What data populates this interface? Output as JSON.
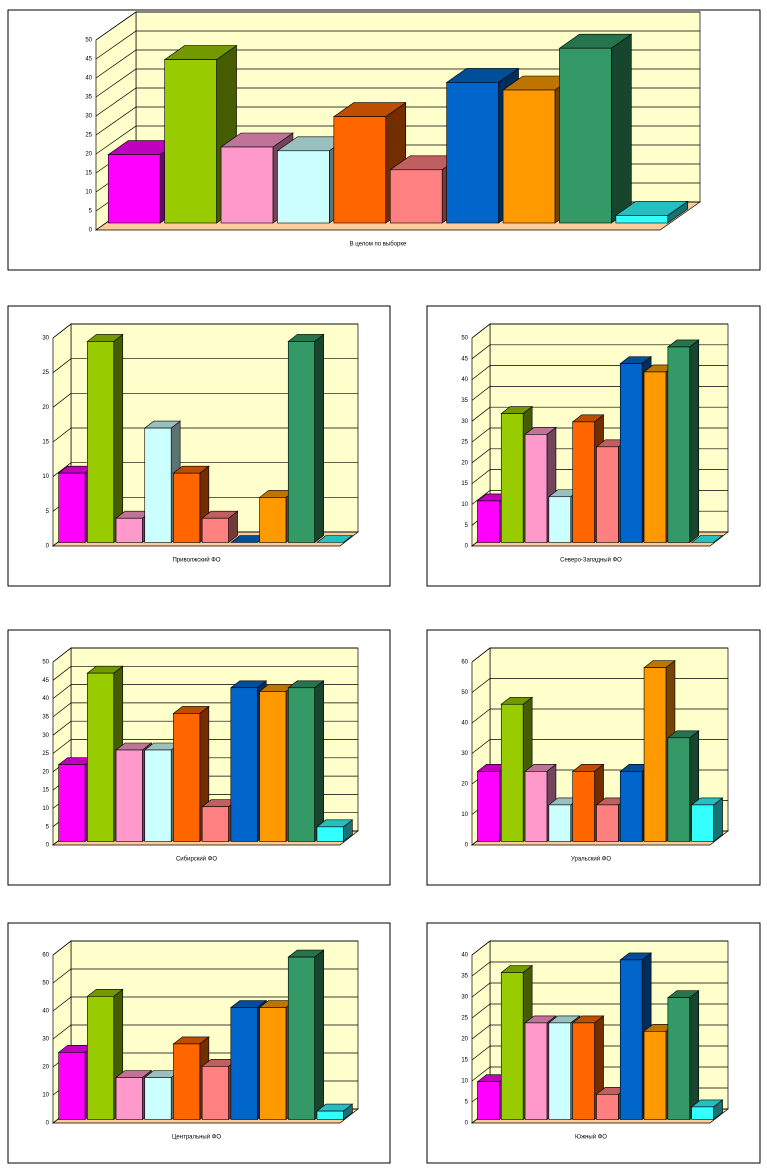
{
  "chart_data": [
    {
      "type": "bar",
      "x_label": "В целом по выборке",
      "grid": true,
      "ylim": [
        0,
        50
      ],
      "yticks": [
        0,
        5,
        10,
        15,
        20,
        25,
        30,
        35,
        40,
        45,
        50
      ],
      "colors": [
        "#ff00ff",
        "#99cc00",
        "#ff99cc",
        "#ccffff",
        "#ff6600",
        "#ff8080",
        "#0066cc",
        "#ff9900",
        "#339966",
        "#33ffff"
      ],
      "values": [
        18,
        43,
        20,
        19,
        28,
        14,
        37,
        35,
        46,
        2
      ]
    },
    {
      "type": "bar",
      "x_label": "Приволжский ФО",
      "grid": true,
      "ylim": [
        0,
        30
      ],
      "yticks": [
        0,
        5,
        10,
        15,
        20,
        25,
        30
      ],
      "colors": [
        "#ff00ff",
        "#99cc00",
        "#ff99cc",
        "#ccffff",
        "#ff6600",
        "#ff8080",
        "#0066cc",
        "#ff9900",
        "#339966",
        "#33ffff"
      ],
      "values": [
        10,
        29,
        3.5,
        16.5,
        10,
        3.5,
        0,
        6.5,
        29,
        0
      ]
    },
    {
      "type": "bar",
      "x_label": "Северо-Западный ФО",
      "grid": true,
      "ylim": [
        0,
        50
      ],
      "yticks": [
        0,
        5,
        10,
        15,
        20,
        25,
        30,
        35,
        40,
        45,
        50
      ],
      "colors": [
        "#ff00ff",
        "#99cc00",
        "#ff99cc",
        "#ccffff",
        "#ff6600",
        "#ff8080",
        "#0066cc",
        "#ff9900",
        "#339966",
        "#33ffff"
      ],
      "values": [
        10,
        31,
        26,
        11,
        29,
        23,
        43,
        41,
        47,
        0
      ]
    },
    {
      "type": "bar",
      "x_label": "Сибирский ФО",
      "grid": true,
      "ylim": [
        0,
        50
      ],
      "yticks": [
        0,
        5,
        10,
        15,
        20,
        25,
        30,
        35,
        40,
        45,
        50
      ],
      "colors": [
        "#ff00ff",
        "#99cc00",
        "#ff99cc",
        "#ccffff",
        "#ff6600",
        "#ff8080",
        "#0066cc",
        "#ff9900",
        "#339966",
        "#33ffff"
      ],
      "values": [
        21,
        46,
        25,
        25,
        35,
        9.5,
        42,
        41,
        42,
        4
      ]
    },
    {
      "type": "bar",
      "x_label": "Уральский ФО",
      "grid": true,
      "ylim": [
        0,
        60
      ],
      "yticks": [
        0,
        10,
        20,
        30,
        40,
        50,
        60
      ],
      "colors": [
        "#ff00ff",
        "#99cc00",
        "#ff99cc",
        "#ccffff",
        "#ff6600",
        "#ff8080",
        "#0066cc",
        "#ff9900",
        "#339966",
        "#33ffff"
      ],
      "values": [
        23,
        45,
        23,
        12,
        23,
        12,
        23,
        57,
        34,
        12
      ]
    },
    {
      "type": "bar",
      "x_label": "Центральный ФО",
      "grid": true,
      "ylim": [
        0,
        60
      ],
      "yticks": [
        0,
        10,
        20,
        30,
        40,
        50,
        60
      ],
      "colors": [
        "#ff00ff",
        "#99cc00",
        "#ff99cc",
        "#ccffff",
        "#ff6600",
        "#ff8080",
        "#0066cc",
        "#ff9900",
        "#339966",
        "#33ffff"
      ],
      "values": [
        24,
        44,
        15,
        15,
        27,
        19,
        40,
        40,
        58,
        3
      ]
    },
    {
      "type": "bar",
      "x_label": "Южный ФО",
      "grid": true,
      "ylim": [
        0,
        40
      ],
      "yticks": [
        0,
        5,
        10,
        15,
        20,
        25,
        30,
        35,
        40
      ],
      "colors": [
        "#ff00ff",
        "#99cc00",
        "#ff99cc",
        "#ccffff",
        "#ff6600",
        "#ff8080",
        "#0066cc",
        "#ff9900",
        "#339966",
        "#33ffff"
      ],
      "values": [
        9,
        35,
        23,
        23,
        23,
        6,
        38,
        21,
        29,
        3
      ]
    }
  ]
}
